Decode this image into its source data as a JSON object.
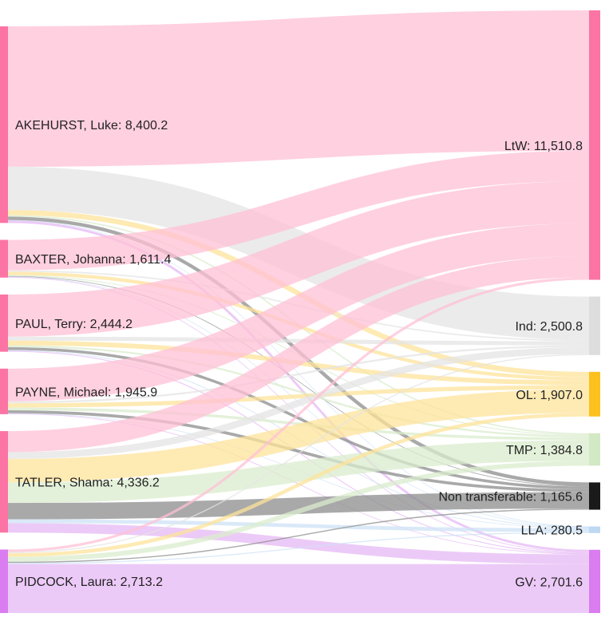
{
  "chart_data": {
    "type": "sankey",
    "title": "",
    "units": "",
    "sources": [
      {
        "id": "akehurst",
        "name": "AKEHURST, Luke",
        "value_label": "8,400.2",
        "value": 8400.2,
        "color": "#fb74a4"
      },
      {
        "id": "baxter",
        "name": "BAXTER, Johanna",
        "value_label": "1,611.4",
        "value": 1611.4,
        "color": "#fb74a4"
      },
      {
        "id": "paul",
        "name": "PAUL, Terry",
        "value_label": "2,444.2",
        "value": 2444.2,
        "color": "#fb74a4"
      },
      {
        "id": "payne",
        "name": "PAYNE, Michael",
        "value_label": "1,945.9",
        "value": 1945.9,
        "color": "#fb74a4"
      },
      {
        "id": "tatler",
        "name": "TATLER, Shama",
        "value_label": "4,336.2",
        "value": 4336.2,
        "color": "#fb74a4"
      },
      {
        "id": "pidcock",
        "name": "PIDCOCK, Laura",
        "value_label": "2,713.2",
        "value": 2713.2,
        "color": "#d97df0"
      }
    ],
    "targets": [
      {
        "id": "ltw",
        "name": "LtW",
        "value_label": "11,510.8",
        "value": 11510.8,
        "color": "#fb74a4",
        "flow_color": "#ffc0d6"
      },
      {
        "id": "ind",
        "name": "Ind",
        "value_label": "2,500.8",
        "value": 2500.8,
        "color": "#dddddd",
        "flow_color": "#e4e4e4"
      },
      {
        "id": "ol",
        "name": "OL",
        "value_label": "1,907.0",
        "value": 1907.0,
        "color": "#fcc11e",
        "flow_color": "#fde39a"
      },
      {
        "id": "tmp",
        "name": "TMP",
        "value_label": "1,384.8",
        "value": 1384.8,
        "color": "#d3e8c4",
        "flow_color": "#dbecce"
      },
      {
        "id": "nt",
        "name": "Non transferable",
        "value_label": "1,165.6",
        "value": 1165.6,
        "color": "#1a1a1a",
        "flow_color": "#8c8c8c"
      },
      {
        "id": "lla",
        "name": "LLA",
        "value_label": "280.5",
        "value": 280.5,
        "color": "#bdd8f2",
        "flow_color": "#cde2f6"
      },
      {
        "id": "gv",
        "name": "GV",
        "value_label": "2,701.6",
        "value": 2701.6,
        "color": "#d97df0",
        "flow_color": "#e6b8f4"
      }
    ],
    "links": [
      {
        "source": "akehurst",
        "target": "ltw",
        "value": 6000
      },
      {
        "source": "akehurst",
        "target": "ind",
        "value": 1850
      },
      {
        "source": "akehurst",
        "target": "ol",
        "value": 220
      },
      {
        "source": "akehurst",
        "target": "tmp",
        "value": 60
      },
      {
        "source": "akehurst",
        "target": "nt",
        "value": 150
      },
      {
        "source": "akehurst",
        "target": "lla",
        "value": 20
      },
      {
        "source": "akehurst",
        "target": "gv",
        "value": 100.2
      },
      {
        "source": "baxter",
        "target": "ltw",
        "value": 1300
      },
      {
        "source": "baxter",
        "target": "ind",
        "value": 60
      },
      {
        "source": "baxter",
        "target": "ol",
        "value": 150
      },
      {
        "source": "baxter",
        "target": "tmp",
        "value": 40
      },
      {
        "source": "baxter",
        "target": "nt",
        "value": 21.4
      },
      {
        "source": "baxter",
        "target": "lla",
        "value": 10
      },
      {
        "source": "baxter",
        "target": "gv",
        "value": 30
      },
      {
        "source": "paul",
        "target": "ltw",
        "value": 1800
      },
      {
        "source": "paul",
        "target": "ind",
        "value": 170
      },
      {
        "source": "paul",
        "target": "ol",
        "value": 200
      },
      {
        "source": "paul",
        "target": "tmp",
        "value": 80
      },
      {
        "source": "paul",
        "target": "nt",
        "value": 120
      },
      {
        "source": "paul",
        "target": "lla",
        "value": 34.2
      },
      {
        "source": "paul",
        "target": "gv",
        "value": 40
      },
      {
        "source": "payne",
        "target": "ltw",
        "value": 1400
      },
      {
        "source": "payne",
        "target": "ind",
        "value": 80
      },
      {
        "source": "payne",
        "target": "ol",
        "value": 180
      },
      {
        "source": "payne",
        "target": "tmp",
        "value": 120
      },
      {
        "source": "payne",
        "target": "nt",
        "value": 125.9
      },
      {
        "source": "payne",
        "target": "lla",
        "value": 10
      },
      {
        "source": "payne",
        "target": "gv",
        "value": 30
      },
      {
        "source": "tatler",
        "target": "ltw",
        "value": 900
      },
      {
        "source": "tatler",
        "target": "ind",
        "value": 290
      },
      {
        "source": "tatler",
        "target": "ol",
        "value": 1000
      },
      {
        "source": "tatler",
        "target": "tmp",
        "value": 880
      },
      {
        "source": "tatler",
        "target": "nt",
        "value": 700
      },
      {
        "source": "tatler",
        "target": "lla",
        "value": 160
      },
      {
        "source": "tatler",
        "target": "gv",
        "value": 406.2
      },
      {
        "source": "pidcock",
        "target": "ltw",
        "value": 110.8
      },
      {
        "source": "pidcock",
        "target": "ind",
        "value": 50.8
      },
      {
        "source": "pidcock",
        "target": "ol",
        "value": 157
      },
      {
        "source": "pidcock",
        "target": "tmp",
        "value": 204.8
      },
      {
        "source": "pidcock",
        "target": "nt",
        "value": 48.3
      },
      {
        "source": "pidcock",
        "target": "lla",
        "value": 46.3
      },
      {
        "source": "pidcock",
        "target": "gv",
        "value": 2095.2
      }
    ]
  }
}
